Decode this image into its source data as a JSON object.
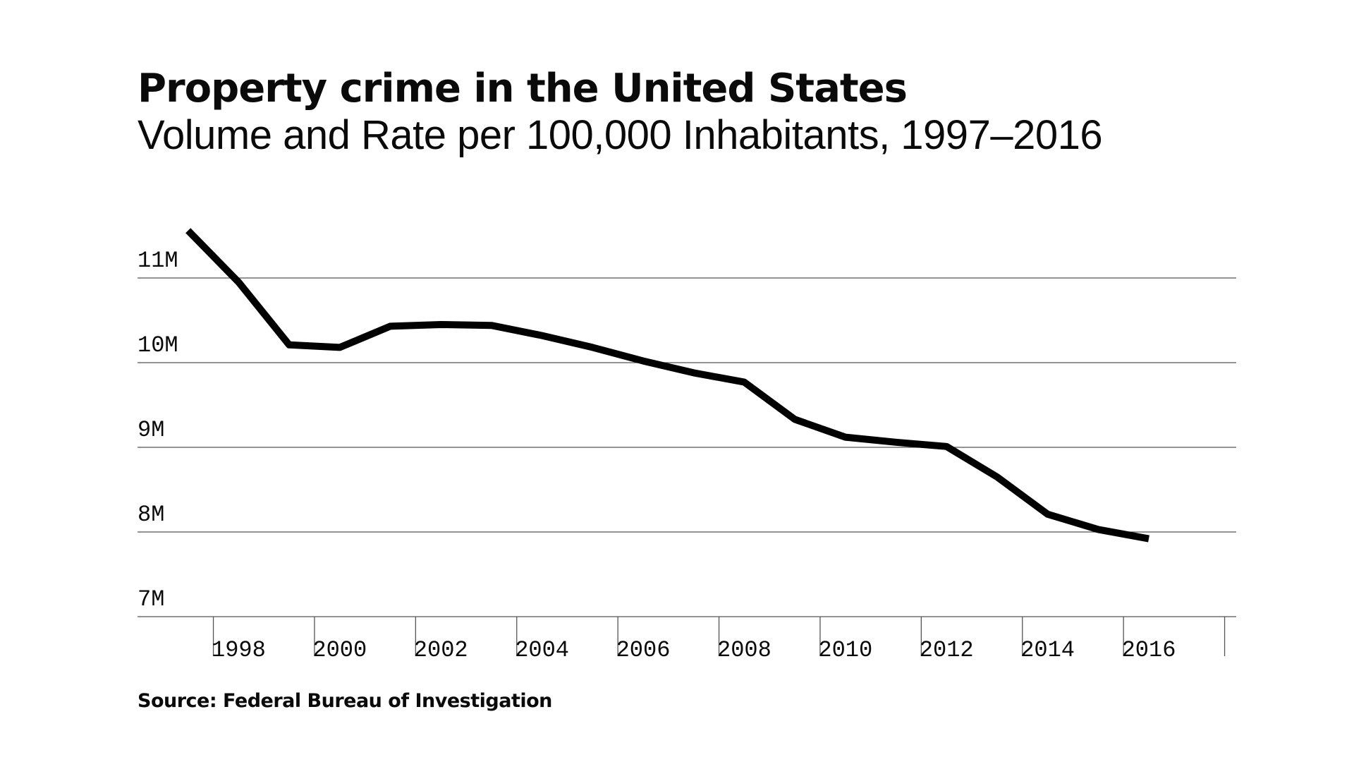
{
  "header": {
    "title": "Property crime in the United States",
    "subtitle": "Volume and Rate per 100,000 Inhabitants, 1997–2016"
  },
  "footer": {
    "source": "Source: Federal Bureau of Investigation"
  },
  "chart_data": {
    "type": "line",
    "title": "Property crime in the United States",
    "subtitle": "Volume and Rate per 100,000 Inhabitants, 1997–2016",
    "xlabel": "",
    "ylabel": "",
    "xlim": [
      1996,
      2016.7
    ],
    "ylim": [
      7000000,
      11500000
    ],
    "grid": true,
    "legend": "none",
    "y_ticks": [
      {
        "value": 11000000,
        "label": "11M"
      },
      {
        "value": 10000000,
        "label": "10M"
      },
      {
        "value": 9000000,
        "label": "9M"
      },
      {
        "value": 8000000,
        "label": "8M"
      },
      {
        "value": 7000000,
        "label": "7M"
      }
    ],
    "x_ticks": [
      {
        "value": 1998,
        "label": "1998"
      },
      {
        "value": 2000,
        "label": "2000"
      },
      {
        "value": 2002,
        "label": "2002"
      },
      {
        "value": 2004,
        "label": "2004"
      },
      {
        "value": 2006,
        "label": "2006"
      },
      {
        "value": 2008,
        "label": "2008"
      },
      {
        "value": 2010,
        "label": "2010"
      },
      {
        "value": 2012,
        "label": "2012"
      },
      {
        "value": 2014,
        "label": "2014"
      },
      {
        "value": 2016,
        "label": "2016"
      }
    ],
    "x_boundaries": [
      1997.5,
      1999.5,
      2001.5,
      2003.5,
      2005.5,
      2007.5,
      2009.5,
      2011.5,
      2013.5,
      2015.5,
      2017.5
    ],
    "series": [
      {
        "color": "#000000",
        "x": [
          1997,
          1998,
          1999,
          2000,
          2001,
          2002,
          2003,
          2004,
          2005,
          2006,
          2007,
          2008,
          2009,
          2010,
          2011,
          2012,
          2013,
          2014,
          2015,
          2016
        ],
        "y": [
          11560000,
          10950000,
          10210000,
          10180000,
          10430000,
          10450000,
          10440000,
          10320000,
          10180000,
          10020000,
          9880000,
          9770000,
          9330000,
          9120000,
          9060000,
          9010000,
          8650000,
          8210000,
          8030000,
          7920000
        ]
      }
    ]
  }
}
